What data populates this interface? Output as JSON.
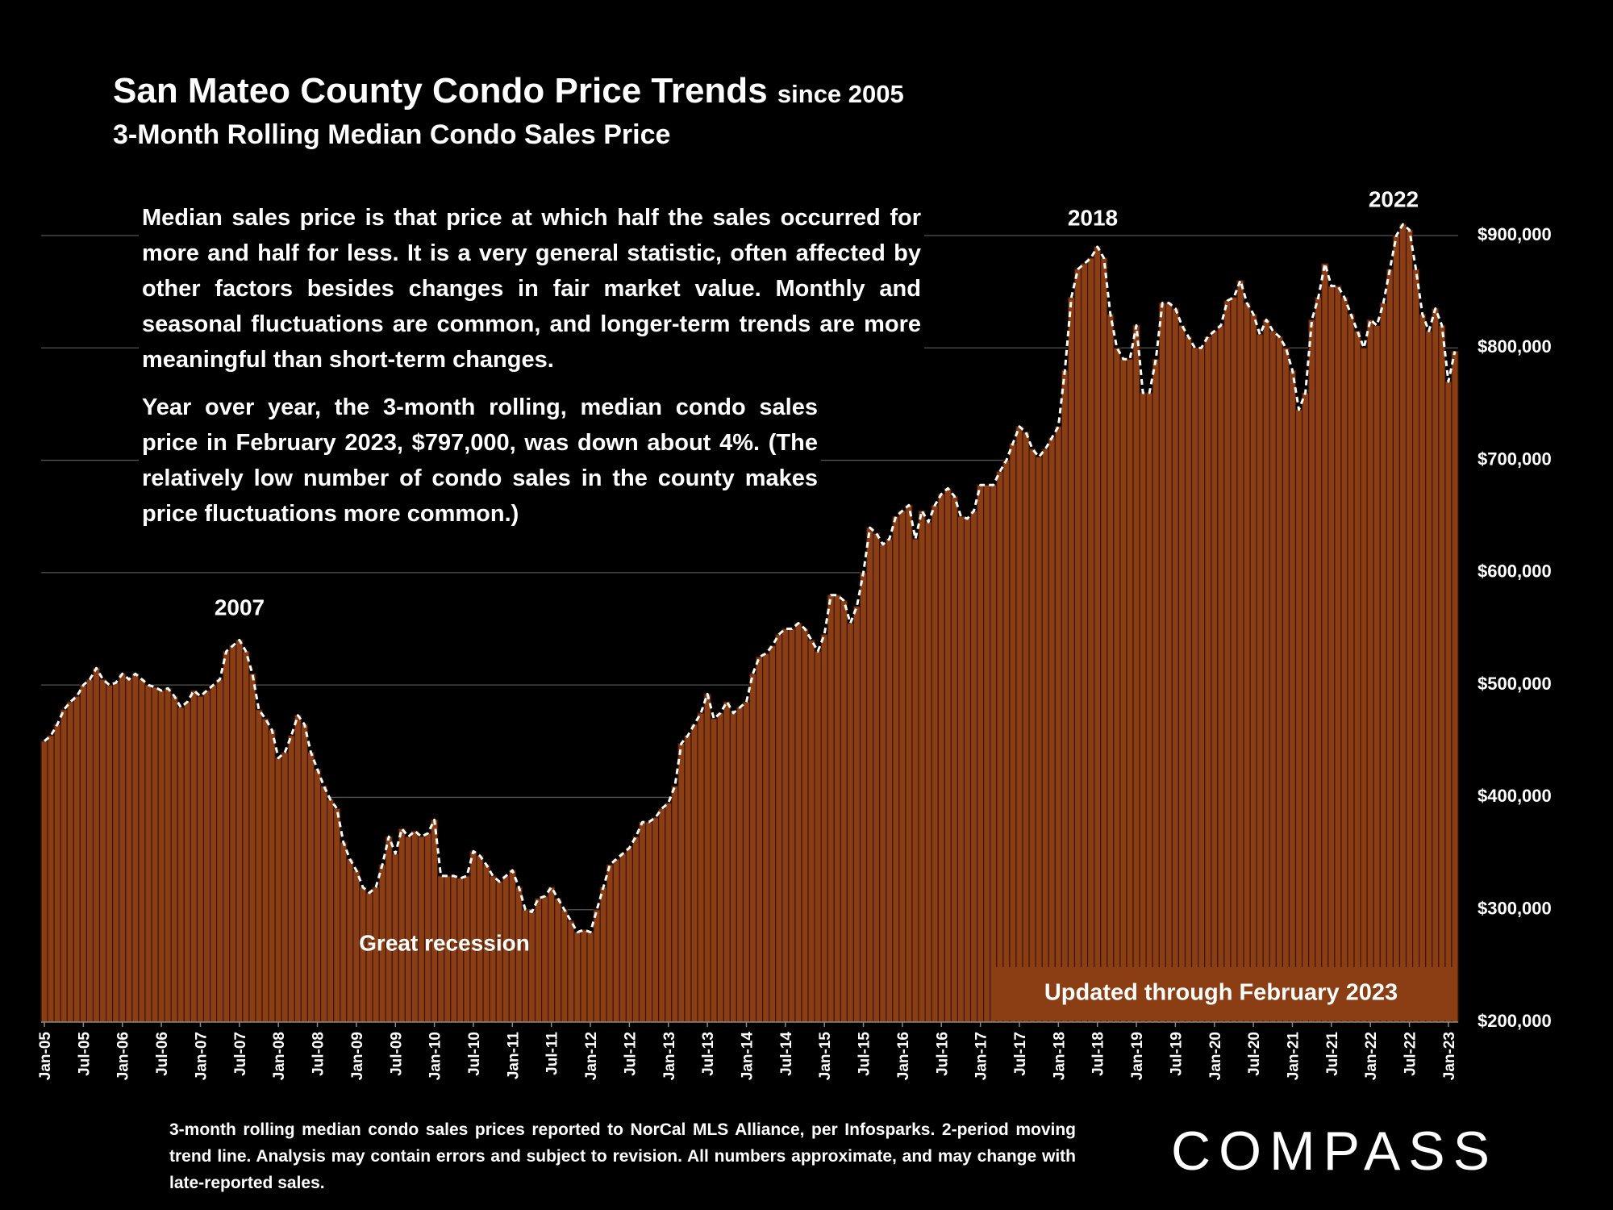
{
  "chart_data": {
    "type": "bar",
    "title": "San Mateo County Condo Price Trends",
    "title_suffix": "since 2005",
    "subtitle": "3-Month Rolling Median Condo Sales Price",
    "notes": [
      "Median sales price is that price at which half the sales occurred for more and half for less. It is a very general statistic, often affected by other factors besides changes in fair market value. Monthly and seasonal fluctuations are common, and longer-term trends are more meaningful than short-term changes.",
      "Year over year, the 3-month rolling, median condo sales price in February 2023, $797,000, was down about 4%. (The relatively low number of condo sales in the county makes price fluctuations more common.)"
    ],
    "annotations": [
      "2007",
      "2018",
      "2022",
      "Great recession",
      "Updated through February 2023"
    ],
    "footnote": "3-month rolling median condo sales prices reported to NorCal MLS Alliance, per Infosparks. 2-period moving trend line. Analysis may contain errors and subject to revision. All numbers approximate, and may change with late-reported sales.",
    "brand": "COMPASS",
    "categories": [
      "Jan-05",
      null,
      null,
      null,
      null,
      null,
      "Jul-05",
      null,
      null,
      null,
      null,
      null,
      "Jan-06",
      null,
      null,
      null,
      null,
      null,
      "Jul-06",
      null,
      null,
      null,
      null,
      null,
      "Jan-07",
      null,
      null,
      null,
      null,
      null,
      "Jul-07",
      null,
      null,
      null,
      null,
      null,
      "Jan-08",
      null,
      null,
      null,
      null,
      null,
      "Jul-08",
      null,
      null,
      null,
      null,
      null,
      "Jan-09",
      null,
      null,
      null,
      null,
      null,
      "Jul-09",
      null,
      null,
      null,
      null,
      null,
      "Jan-10",
      null,
      null,
      null,
      null,
      null,
      "Jul-10",
      null,
      null,
      null,
      null,
      null,
      "Jan-11",
      null,
      null,
      null,
      null,
      null,
      "Jul-11",
      null,
      null,
      null,
      null,
      null,
      "Jan-12",
      null,
      null,
      null,
      null,
      null,
      "Jul-12",
      null,
      null,
      null,
      null,
      null,
      "Jan-13",
      null,
      null,
      null,
      null,
      null,
      "Jul-13",
      null,
      null,
      null,
      null,
      null,
      "Jan-14",
      null,
      null,
      null,
      null,
      null,
      "Jul-14",
      null,
      null,
      null,
      null,
      null,
      "Jan-15",
      null,
      null,
      null,
      null,
      null,
      "Jul-15",
      null,
      null,
      null,
      null,
      null,
      "Jan-16",
      null,
      null,
      null,
      null,
      null,
      "Jul-16",
      null,
      null,
      null,
      null,
      null,
      "Jan-17",
      null,
      null,
      null,
      null,
      null,
      "Jul-17",
      null,
      null,
      null,
      null,
      null,
      "Jan-18",
      null,
      null,
      null,
      null,
      null,
      "Jul-18",
      null,
      null,
      null,
      null,
      null,
      "Jan-19",
      null,
      null,
      null,
      null,
      null,
      "Jul-19",
      null,
      null,
      null,
      null,
      null,
      "Jan-20",
      null,
      null,
      null,
      null,
      null,
      "Jul-20",
      null,
      null,
      null,
      null,
      null,
      "Jan-21",
      null,
      null,
      null,
      null,
      null,
      "Jul-21",
      null,
      null,
      null,
      null,
      null,
      "Jan-22",
      null,
      null,
      null,
      null,
      null,
      "Jul-22",
      null,
      null,
      null,
      null,
      null,
      "Jan-23",
      null
    ],
    "values": [
      450000,
      455000,
      465000,
      478000,
      485000,
      490000,
      500000,
      505000,
      515000,
      505000,
      500000,
      502000,
      510000,
      505000,
      510000,
      505000,
      500000,
      498000,
      495000,
      497000,
      490000,
      480000,
      485000,
      495000,
      490000,
      495000,
      500000,
      505000,
      530000,
      535000,
      540000,
      530000,
      510000,
      478000,
      470000,
      460000,
      435000,
      440000,
      455000,
      473000,
      465000,
      440000,
      425000,
      410000,
      398000,
      390000,
      360000,
      345000,
      335000,
      320000,
      315000,
      320000,
      340000,
      365000,
      350000,
      372000,
      365000,
      370000,
      365000,
      368000,
      380000,
      330000,
      330000,
      330000,
      328000,
      330000,
      352000,
      348000,
      340000,
      330000,
      325000,
      330000,
      335000,
      320000,
      300000,
      298000,
      310000,
      312000,
      320000,
      310000,
      300000,
      290000,
      280000,
      282000,
      280000,
      300000,
      320000,
      340000,
      345000,
      350000,
      355000,
      365000,
      378000,
      378000,
      382000,
      390000,
      395000,
      410000,
      448000,
      455000,
      465000,
      475000,
      492000,
      470000,
      475000,
      485000,
      475000,
      480000,
      485000,
      510000,
      525000,
      528000,
      535000,
      545000,
      550000,
      550000,
      555000,
      550000,
      540000,
      530000,
      545000,
      580000,
      580000,
      575000,
      555000,
      570000,
      600000,
      640000,
      635000,
      625000,
      630000,
      650000,
      655000,
      660000,
      630000,
      655000,
      645000,
      660000,
      670000,
      675000,
      668000,
      650000,
      648000,
      655000,
      678000,
      678000,
      678000,
      690000,
      700000,
      715000,
      730000,
      725000,
      710000,
      703000,
      710000,
      720000,
      730000,
      780000,
      845000,
      870000,
      875000,
      880000,
      890000,
      880000,
      830000,
      800000,
      790000,
      790000,
      820000,
      760000,
      760000,
      790000,
      840000,
      840000,
      835000,
      820000,
      810000,
      800000,
      800000,
      810000,
      815000,
      820000,
      842000,
      845000,
      860000,
      840000,
      830000,
      812000,
      825000,
      815000,
      810000,
      800000,
      780000,
      745000,
      760000,
      825000,
      845000,
      875000,
      855000,
      855000,
      845000,
      830000,
      815000,
      800000,
      825000,
      820000,
      840000,
      870000,
      900000,
      910000,
      905000,
      870000,
      830000,
      815000,
      835000,
      820000,
      770000,
      797000
    ],
    "color": "#8b3e14",
    "trend_color": "#ffffff",
    "ylim": [
      200000,
      900000
    ],
    "yticks": [
      {
        "value": 200000,
        "label": "$200,000"
      },
      {
        "value": 300000,
        "label": "$300,000"
      },
      {
        "value": 400000,
        "label": "$400,000"
      },
      {
        "value": 500000,
        "label": "$500,000"
      },
      {
        "value": 600000,
        "label": "$600,000"
      },
      {
        "value": 700000,
        "label": "$700,000"
      },
      {
        "value": 800000,
        "label": "$800,000"
      },
      {
        "value": 900000,
        "label": "$900,000"
      }
    ],
    "grid": true
  }
}
